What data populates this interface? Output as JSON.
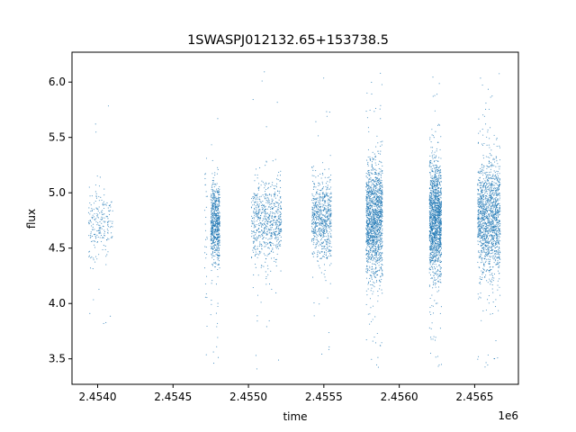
{
  "chart_data": {
    "type": "scatter",
    "title": "1SWASPJ012132.65+153738.5",
    "xlabel": "time",
    "ylabel": "flux",
    "x_offset_label": "1e6",
    "xlim": [
      2.45383,
      2.45679
    ],
    "ylim": [
      3.27,
      6.27
    ],
    "x_ticks": [
      2.454,
      2.4545,
      2.455,
      2.4555,
      2.456,
      2.4565
    ],
    "x_tick_labels": [
      "2.4540",
      "2.4545",
      "2.4550",
      "2.4555",
      "2.4560",
      "2.4565"
    ],
    "y_ticks": [
      3.5,
      4.0,
      4.5,
      5.0,
      5.5,
      6.0
    ],
    "y_tick_labels": [
      "3.5",
      "4.0",
      "4.5",
      "5.0",
      "5.5",
      "6.0"
    ],
    "grid": false,
    "series": [
      {
        "color": "#1f77b4",
        "clusters": [
          {
            "x_start": 2.45394,
            "x_end": 2.4541,
            "median": 4.72,
            "low": 3.75,
            "high": 5.82,
            "density": "sparse"
          },
          {
            "x_start": 2.45471,
            "x_end": 2.45473,
            "median": 4.75,
            "low": 3.5,
            "high": 5.33,
            "density": "very-sparse"
          },
          {
            "x_start": 2.45475,
            "x_end": 2.45481,
            "median": 4.72,
            "low": 3.45,
            "high": 5.76,
            "density": "medium"
          },
          {
            "x_start": 2.45502,
            "x_end": 2.45522,
            "median": 4.74,
            "low": 3.4,
            "high": 6.1,
            "density": "medium"
          },
          {
            "x_start": 2.45542,
            "x_end": 2.45555,
            "median": 4.78,
            "low": 3.5,
            "high": 6.07,
            "density": "medium"
          },
          {
            "x_start": 2.45578,
            "x_end": 2.45589,
            "median": 4.75,
            "low": 3.4,
            "high": 6.14,
            "density": "dense"
          },
          {
            "x_start": 2.4562,
            "x_end": 2.45628,
            "median": 4.76,
            "low": 3.42,
            "high": 6.05,
            "density": "dense"
          },
          {
            "x_start": 2.45652,
            "x_end": 2.45667,
            "median": 4.77,
            "low": 3.4,
            "high": 6.12,
            "density": "dense"
          }
        ]
      }
    ]
  }
}
